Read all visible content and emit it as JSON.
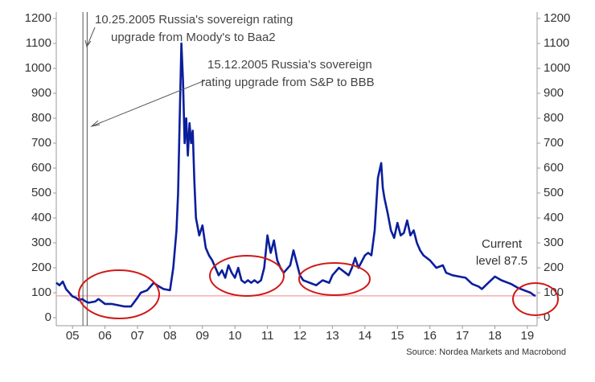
{
  "chart_data": {
    "type": "line",
    "color": "#0a1e9c",
    "x": [
      5.0,
      5.1,
      5.2,
      5.3,
      5.4,
      5.5,
      5.6,
      5.7,
      5.8,
      5.9,
      6.0,
      6.2,
      6.3,
      6.4,
      6.5,
      6.7,
      6.9,
      7.1,
      7.3,
      7.5,
      7.6,
      7.8,
      8.0,
      8.1,
      8.3,
      8.5,
      8.6,
      8.7,
      8.75,
      8.8,
      8.85,
      8.9,
      8.95,
      9.0,
      9.05,
      9.1,
      9.15,
      9.2,
      9.25,
      9.3,
      9.4,
      9.5,
      9.6,
      9.7,
      9.8,
      9.9,
      10.0,
      10.1,
      10.2,
      10.3,
      10.4,
      10.5,
      10.6,
      10.7,
      10.8,
      10.9,
      11.0,
      11.1,
      11.2,
      11.3,
      11.4,
      11.5,
      11.6,
      11.7,
      11.8,
      11.9,
      12.0,
      12.2,
      12.3,
      12.4,
      12.5,
      12.6,
      12.8,
      13.0,
      13.2,
      13.4,
      13.5,
      13.7,
      13.9,
      14.0,
      14.1,
      14.2,
      14.3,
      14.5,
      14.6,
      14.7,
      14.8,
      14.9,
      15.0,
      15.05,
      15.1,
      15.2,
      15.3,
      15.4,
      15.5,
      15.6,
      15.7,
      15.8,
      15.9,
      16.0,
      16.1,
      16.2,
      16.3,
      16.5,
      16.7,
      16.9,
      17.0,
      17.2,
      17.4,
      17.6,
      17.8,
      18.0,
      18.1,
      18.3,
      18.5,
      18.7,
      18.9,
      19.0,
      19.2,
      19.4,
      19.6,
      19.7,
      19.75
    ],
    "values": [
      140,
      130,
      145,
      115,
      100,
      85,
      80,
      70,
      75,
      65,
      60,
      65,
      75,
      65,
      55,
      55,
      50,
      45,
      45,
      80,
      100,
      110,
      140,
      130,
      115,
      110,
      200,
      350,
      500,
      800,
      1100,
      950,
      700,
      800,
      650,
      780,
      700,
      750,
      550,
      400,
      330,
      370,
      280,
      250,
      230,
      200,
      170,
      190,
      160,
      210,
      180,
      160,
      200,
      150,
      140,
      150,
      140,
      150,
      140,
      150,
      200,
      330,
      260,
      310,
      230,
      200,
      180,
      210,
      270,
      220,
      170,
      150,
      140,
      130,
      150,
      140,
      170,
      200,
      180,
      170,
      200,
      240,
      200,
      250,
      260,
      250,
      350,
      560,
      620,
      520,
      480,
      420,
      350,
      320,
      380,
      330,
      340,
      390,
      330,
      350,
      300,
      270,
      250,
      230,
      200,
      210,
      180,
      170,
      165,
      160,
      135,
      125,
      115,
      140,
      165,
      150,
      140,
      135,
      120,
      110,
      100,
      90,
      87.5
    ],
    "xlim": [
      5.0,
      19.8
    ],
    "xticks": [
      {
        "value": 5.5,
        "label": "05"
      },
      {
        "value": 6.5,
        "label": "06"
      },
      {
        "value": 7.5,
        "label": "07"
      },
      {
        "value": 8.5,
        "label": "08"
      },
      {
        "value": 9.5,
        "label": "09"
      },
      {
        "value": 10.5,
        "label": "10"
      },
      {
        "value": 11.5,
        "label": "11"
      },
      {
        "value": 12.5,
        "label": "12"
      },
      {
        "value": 13.5,
        "label": "13"
      },
      {
        "value": 14.5,
        "label": "14"
      },
      {
        "value": 15.5,
        "label": "15"
      },
      {
        "value": 16.5,
        "label": "16"
      },
      {
        "value": 17.5,
        "label": "17"
      },
      {
        "value": 18.5,
        "label": "18"
      },
      {
        "value": 19.5,
        "label": "19"
      }
    ],
    "ylim": [
      0,
      1200
    ],
    "yticks": [
      0,
      100,
      200,
      300,
      400,
      500,
      600,
      700,
      800,
      900,
      1000,
      1100,
      1200
    ],
    "y2lim": [
      0,
      1200
    ],
    "y2ticks": [
      0,
      100,
      200,
      300,
      400,
      500,
      600,
      700,
      800,
      900,
      1000,
      1100,
      1200
    ],
    "reference_line": {
      "value": 87.5,
      "color": "#f4a0a0"
    },
    "events": [
      {
        "x": 5.82,
        "lines": [
          "10.25.2005 Russia's sovereign rating",
          "upgrade from Moody's to Baa2"
        ]
      },
      {
        "x": 5.95,
        "lines": [
          "15.12.2005 Russia's sovereign",
          "rating upgrade from S&P to BBB"
        ]
      }
    ],
    "current_label": {
      "lines": [
        "Current",
        "level 87.5"
      ],
      "color": "#e05050"
    },
    "source": "Source: Nordea Markets and Macrobond"
  }
}
